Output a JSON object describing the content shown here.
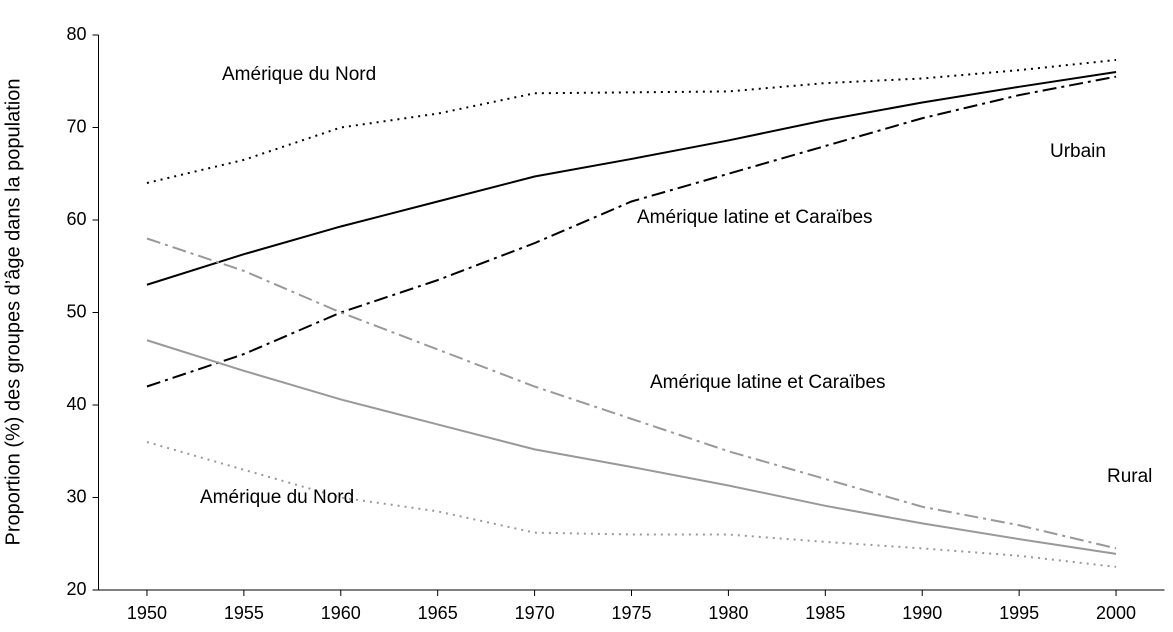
{
  "chart_data": {
    "type": "line",
    "y_label": "Proportion (%) des groupes d’âge dans la population",
    "x": [
      1950,
      1955,
      1960,
      1965,
      1970,
      1975,
      1980,
      1985,
      1990,
      1995,
      2000
    ],
    "xlim": [
      1947.5,
      2002.5
    ],
    "xticks": [
      1950,
      1955,
      1960,
      1965,
      1970,
      1975,
      1980,
      1985,
      1990,
      1995,
      2000
    ],
    "ylim": [
      20,
      80
    ],
    "yticks": [
      20,
      30,
      40,
      50,
      60,
      70,
      80
    ],
    "grid": false,
    "series": [
      {
        "name": "Amérique du Nord",
        "color": "#000000",
        "style": "dotted",
        "values": [
          64,
          66.5,
          70,
          71.5,
          73.7,
          73.8,
          73.9,
          74.8,
          75.3,
          76.2,
          77.3
        ]
      },
      {
        "name": "Urbain",
        "color": "#000000",
        "style": "solid",
        "values": [
          53,
          56.3,
          59.3,
          62,
          64.7,
          66.6,
          68.6,
          70.8,
          72.7,
          74.4,
          76
        ]
      },
      {
        "name": "Amérique latine et Caraïbes",
        "color": "#000000",
        "style": "dashdot",
        "values": [
          42,
          45.5,
          50,
          53.5,
          57.5,
          62,
          65,
          68,
          71,
          73.5,
          75.5
        ]
      },
      {
        "name": "Amérique latine et Caraïbes",
        "color": "#999999",
        "style": "dashdot",
        "values": [
          58,
          54.5,
          50,
          46,
          42,
          38.5,
          35,
          32,
          29,
          27,
          24.5
        ]
      },
      {
        "name": "Rural",
        "color": "#999999",
        "style": "solid",
        "values": [
          47,
          43.7,
          40.6,
          37.9,
          35.2,
          33.3,
          31.3,
          29.1,
          27.2,
          25.5,
          23.9
        ]
      },
      {
        "name": "Amérique du Nord",
        "color": "#999999",
        "style": "dotted",
        "values": [
          36,
          33,
          30,
          28.5,
          26.2,
          26,
          26,
          25.2,
          24.5,
          23.7,
          22.5
        ]
      }
    ]
  }
}
